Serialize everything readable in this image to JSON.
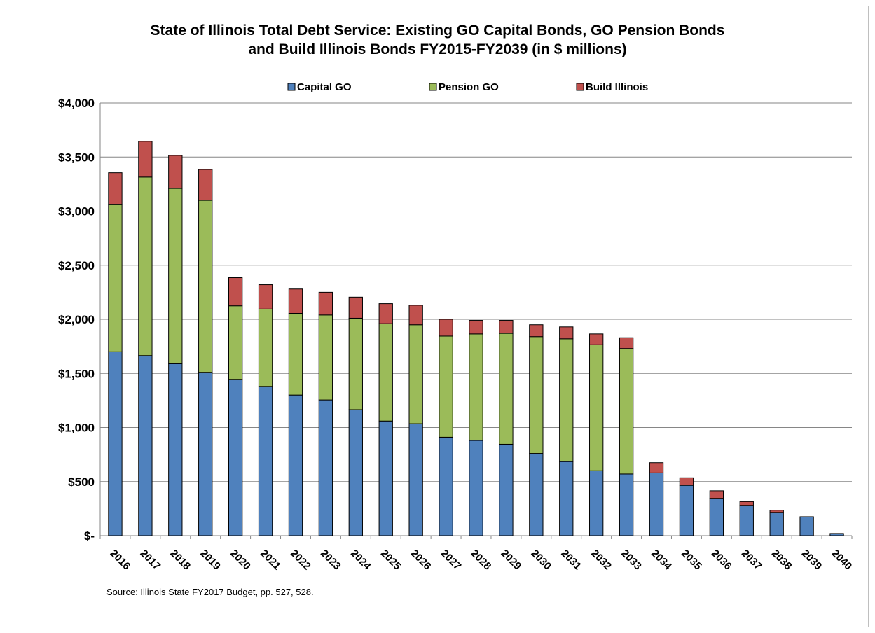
{
  "chart_data": {
    "type": "bar",
    "stacked": true,
    "title": "State of Illinois Total Debt Service: Existing GO Capital Bonds, GO Pension Bonds\nand Build Illinois Bonds FY2015-FY2039 (in $ millions)",
    "xlabel": "",
    "ylabel": "",
    "ylim": [
      0,
      4000
    ],
    "yticks": [
      0,
      500,
      1000,
      1500,
      2000,
      2500,
      3000,
      3500,
      4000
    ],
    "ytick_labels": [
      "$-",
      "$500",
      "$1,000",
      "$1,500",
      "$2,000",
      "$2,500",
      "$3,000",
      "$3,500",
      "$4,000"
    ],
    "grid": true,
    "legend_position": "top",
    "categories": [
      "2016",
      "2017",
      "2018",
      "2019",
      "2020",
      "2021",
      "2022",
      "2023",
      "2024",
      "2025",
      "2026",
      "2027",
      "2028",
      "2029",
      "2030",
      "2031",
      "2032",
      "2033",
      "2034",
      "2035",
      "2036",
      "2037",
      "2038",
      "2039",
      "2040"
    ],
    "series": [
      {
        "name": "Capital GO",
        "color": "#4f81bd",
        "values": [
          1700,
          1665,
          1590,
          1510,
          1445,
          1380,
          1300,
          1255,
          1165,
          1060,
          1035,
          910,
          880,
          845,
          760,
          685,
          600,
          570,
          580,
          465,
          345,
          280,
          215,
          175,
          20
        ]
      },
      {
        "name": "Pension GO",
        "color": "#9bbb59",
        "values": [
          1360,
          1650,
          1620,
          1590,
          680,
          715,
          755,
          785,
          845,
          900,
          915,
          935,
          985,
          1025,
          1080,
          1135,
          1165,
          1160,
          0,
          0,
          0,
          0,
          0,
          0,
          0
        ]
      },
      {
        "name": "Build Illinois",
        "color": "#c0504d",
        "values": [
          295,
          330,
          305,
          285,
          260,
          225,
          225,
          210,
          195,
          185,
          180,
          155,
          125,
          120,
          110,
          110,
          100,
          100,
          95,
          70,
          70,
          35,
          20,
          0,
          0
        ]
      }
    ],
    "source": "Source: Illinois State FY2017 Budget, pp. 527, 528."
  }
}
